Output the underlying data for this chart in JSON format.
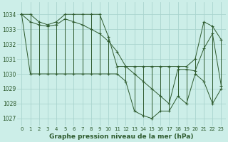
{
  "title": "Graphe pression niveau de la mer (hPa)",
  "bg_color": "#cceee8",
  "grid_color": "#aad4ce",
  "line_color": "#2d5a2d",
  "x_labels": [
    "0",
    "1",
    "2",
    "3",
    "4",
    "5",
    "6",
    "7",
    "8",
    "9",
    "10",
    "11",
    "12",
    "13",
    "14",
    "15",
    "16",
    "17",
    "18",
    "19",
    "20",
    "21",
    "22",
    "23"
  ],
  "ylim": [
    1026.5,
    1034.8
  ],
  "yticks": [
    1027,
    1028,
    1029,
    1030,
    1031,
    1032,
    1033,
    1034
  ],
  "series_max": [
    1034.0,
    1034.0,
    1033.5,
    1033.3,
    1033.5,
    1034.0,
    1034.0,
    1034.0,
    1034.0,
    1034.0,
    1032.5,
    1030.5,
    1030.5,
    1030.5,
    1030.5,
    1030.5,
    1030.5,
    1030.5,
    1030.5,
    1030.5,
    1031.0,
    1033.5,
    1033.2,
    1032.3
  ],
  "series_min": [
    1034.0,
    1030.0,
    1030.0,
    1030.0,
    1030.0,
    1030.0,
    1030.0,
    1030.0,
    1030.0,
    1030.0,
    1030.0,
    1030.0,
    1029.5,
    1027.5,
    1027.2,
    1027.0,
    1027.5,
    1027.5,
    1028.5,
    1028.0,
    1030.0,
    1029.5,
    1028.0,
    1029.0
  ],
  "series_mean": [
    1034.0,
    1033.5,
    1033.3,
    1033.2,
    1033.3,
    1033.7,
    1033.5,
    1033.3,
    1033.0,
    1032.7,
    1032.2,
    1031.5,
    1030.5,
    1030.0,
    1029.5,
    1029.0,
    1028.5,
    1028.0,
    1030.3,
    1030.3,
    1030.2,
    1031.7,
    1032.7,
    1029.2
  ]
}
